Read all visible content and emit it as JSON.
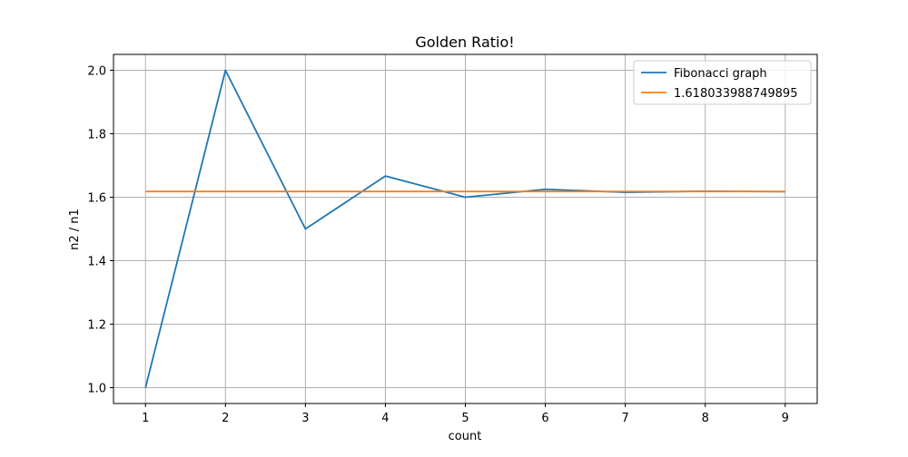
{
  "chart_data": {
    "type": "line",
    "title": "Golden Ratio!",
    "xlabel": "count",
    "ylabel": "n2 / n1",
    "xlim": [
      0.6,
      9.4
    ],
    "ylim": [
      0.95,
      2.05
    ],
    "x_ticks": [
      1,
      2,
      3,
      4,
      5,
      6,
      7,
      8,
      9
    ],
    "y_ticks": [
      1.0,
      1.2,
      1.4,
      1.6,
      1.8,
      2.0
    ],
    "x_tick_labels": [
      "1",
      "2",
      "3",
      "4",
      "5",
      "6",
      "7",
      "8",
      "9"
    ],
    "y_tick_labels": [
      "1.0",
      "1.2",
      "1.4",
      "1.6",
      "1.8",
      "2.0"
    ],
    "grid": true,
    "legend_position": "top-right",
    "x": [
      1,
      2,
      3,
      4,
      5,
      6,
      7,
      8,
      9
    ],
    "series": [
      {
        "name": "Fibonacci graph",
        "color": "#1f77b4",
        "values": [
          1.0,
          2.0,
          1.5,
          1.6667,
          1.6,
          1.625,
          1.6154,
          1.619,
          1.6176
        ]
      },
      {
        "name": "1.618033988749895",
        "color": "#ff7f0e",
        "values": [
          1.618033988749895,
          1.618033988749895,
          1.618033988749895,
          1.618033988749895,
          1.618033988749895,
          1.618033988749895,
          1.618033988749895,
          1.618033988749895,
          1.618033988749895
        ]
      }
    ]
  }
}
